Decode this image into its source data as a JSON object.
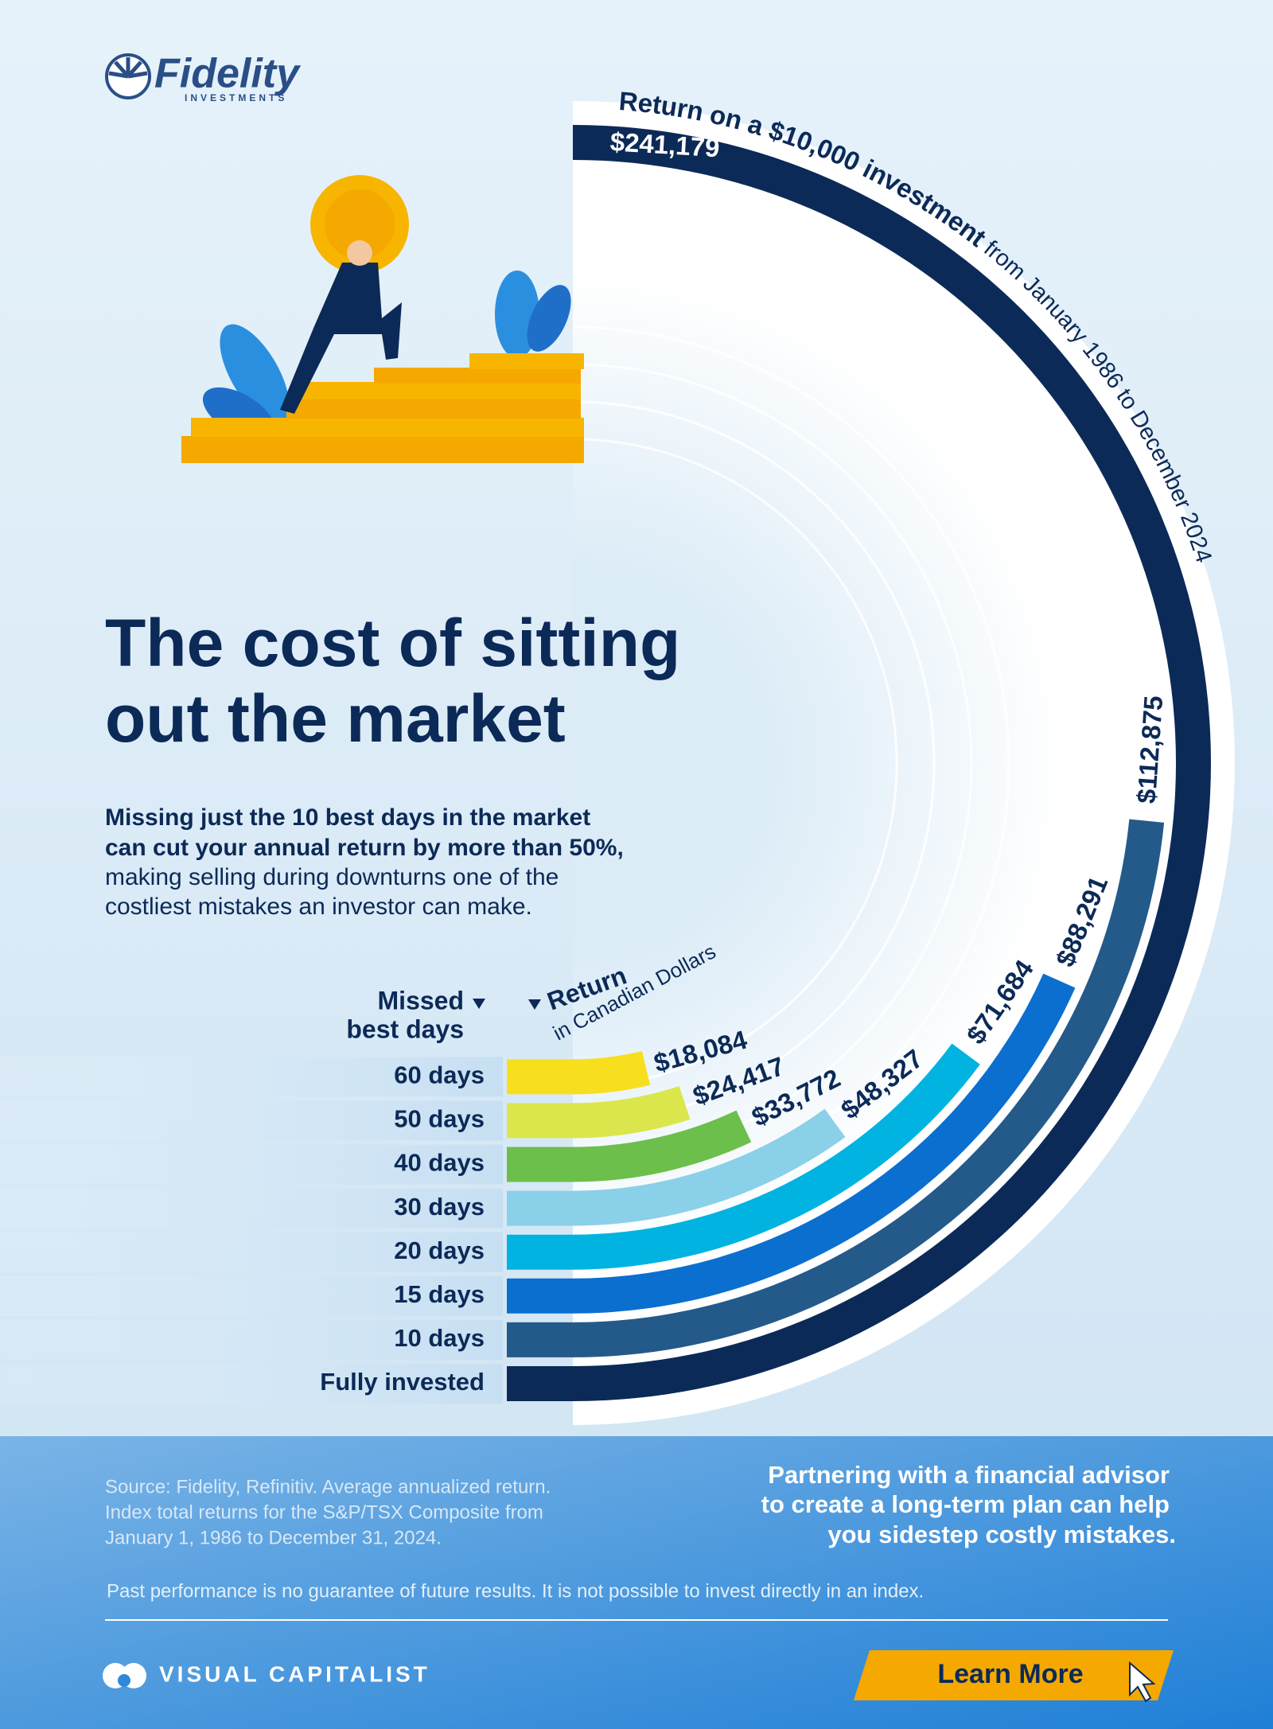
{
  "header": {
    "logo": "Fidelity",
    "logo_sub": "INVESTMENTS"
  },
  "title_lines": [
    "The cost of sitting",
    "out the market"
  ],
  "intro": {
    "bold_lines": [
      "Missing just the 10 best days in the market",
      "can cut your annual return by more than 50%,"
    ],
    "lines": [
      "making selling during downturns one of the",
      "costliest mistakes an investor can make."
    ]
  },
  "chart_data": {
    "type": "radial-bar",
    "title": "Return on a $10,000 investment",
    "subtitle": "from January 1986 to December 2024",
    "category_header": [
      "Missed",
      "best days"
    ],
    "value_header": [
      "Return",
      "in Canadian Dollars"
    ],
    "categories": [
      "Fully invested",
      "10 days",
      "15 days",
      "20 days",
      "30 days",
      "40 days",
      "50 days",
      "60 days"
    ],
    "values": [
      241179,
      112875,
      88291,
      71684,
      48327,
      33772,
      24417,
      18084
    ],
    "value_labels": [
      "$241,179",
      "$112,875",
      "$88,291",
      "$71,684",
      "$48,327",
      "$33,772",
      "$24,417",
      "$18,084"
    ],
    "colors": [
      "#0c2a57",
      "#245a8a",
      "#0b6fcf",
      "#00b3e0",
      "#8ad0e8",
      "#6cbf4a",
      "#dbe64c",
      "#f7df1e"
    ]
  },
  "source_lines": [
    "Source: Fidelity, Refinitiv. Average annualized return.",
    "Index total returns for the S&P/TSX Composite from",
    "January 1, 1986 to December 31, 2024."
  ],
  "cta_lines": [
    "Partnering with a financial advisor",
    "to create a long-term plan can help",
    "you sidestep costly mistakes."
  ],
  "disclaimer": "Past performance is no guarantee of future results. It is not possible to invest directly in an index.",
  "footer": {
    "brand": "VISUAL CAPITALIST",
    "button": "Learn More"
  }
}
